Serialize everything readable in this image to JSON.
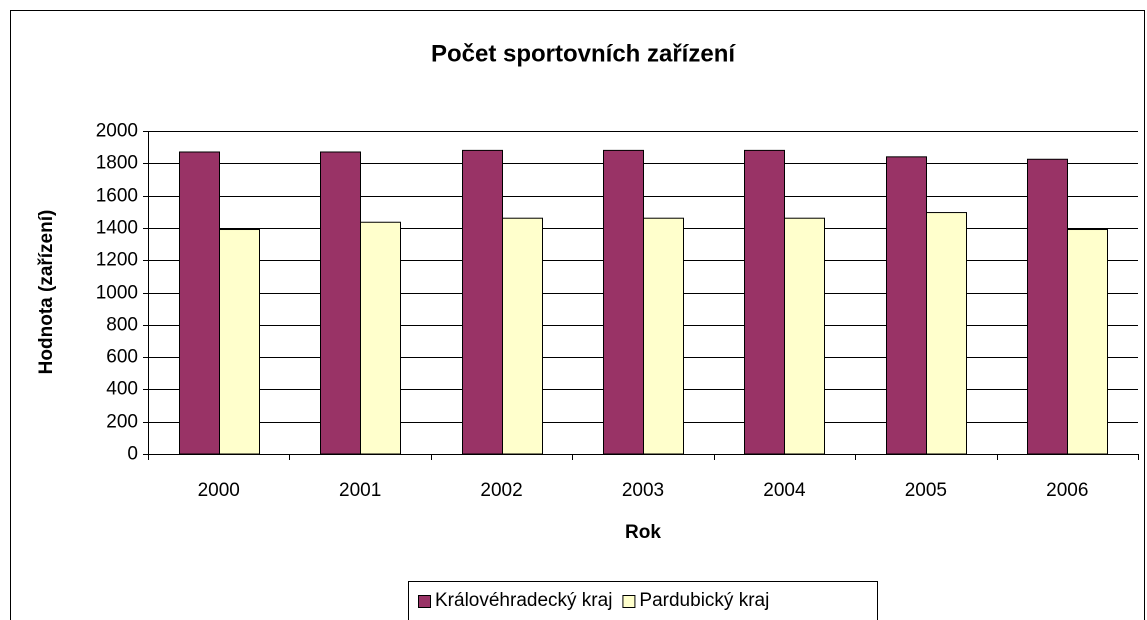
{
  "chart_data": {
    "type": "bar",
    "title": "Počet sportovních zařízení",
    "x_label": "Rok",
    "y_label": "Hodnota (zařízení)",
    "categories": [
      "2000",
      "2001",
      "2002",
      "2003",
      "2004",
      "2005",
      "2006"
    ],
    "series": [
      {
        "name": "Královéhradecký kraj",
        "color": "#993366",
        "values": [
          1870,
          1870,
          1880,
          1880,
          1880,
          1840,
          1825
        ]
      },
      {
        "name": "Pardubický kraj",
        "color": "#ffffcc",
        "values": [
          1390,
          1435,
          1460,
          1460,
          1460,
          1495,
          1390
        ]
      }
    ],
    "ylim": [
      0,
      2000
    ],
    "yticks": [
      0,
      200,
      400,
      600,
      800,
      1000,
      1200,
      1400,
      1600,
      1800,
      2000
    ],
    "grid": true,
    "legend": "bottom"
  }
}
